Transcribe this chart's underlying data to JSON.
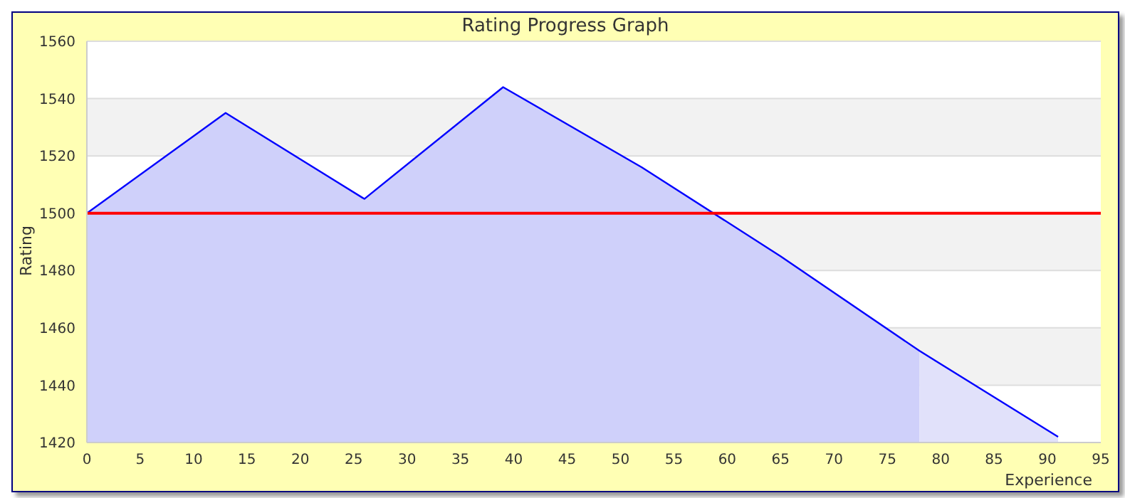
{
  "chart_data": {
    "type": "area",
    "title": "Rating Progress Graph",
    "xlabel": "Experience",
    "ylabel": "Rating",
    "series": [
      {
        "type": "area",
        "color": "#cfd0fa",
        "x": [
          0,
          13,
          26,
          39,
          52,
          65,
          78
        ],
        "values": [
          1500,
          1535,
          1505,
          1544,
          1516,
          1485,
          1452
        ]
      },
      {
        "type": "area",
        "color": "#e1e1fa",
        "x": [
          78,
          91
        ],
        "values": [
          1452,
          1422
        ]
      },
      {
        "type": "line",
        "color": "#0000ff",
        "x": [
          0,
          13,
          26,
          39,
          52,
          65,
          78,
          91
        ],
        "values": [
          1500,
          1535,
          1505,
          1544,
          1516,
          1485,
          1452,
          1422
        ]
      }
    ],
    "xlim": [
      0,
      95
    ],
    "xticks": [
      0,
      5,
      10,
      15,
      20,
      25,
      30,
      35,
      40,
      45,
      50,
      55,
      60,
      65,
      70,
      75,
      80,
      85,
      90,
      95
    ],
    "ylim": [
      1420,
      1560
    ],
    "yticks": [
      1420,
      1440,
      1460,
      1480,
      1500,
      1520,
      1540,
      1560
    ],
    "ref_lines": [
      {
        "axis": "y",
        "value": 1500,
        "color": "#ff0000"
      }
    ],
    "grid": "y",
    "legend": false,
    "marker": "none"
  }
}
